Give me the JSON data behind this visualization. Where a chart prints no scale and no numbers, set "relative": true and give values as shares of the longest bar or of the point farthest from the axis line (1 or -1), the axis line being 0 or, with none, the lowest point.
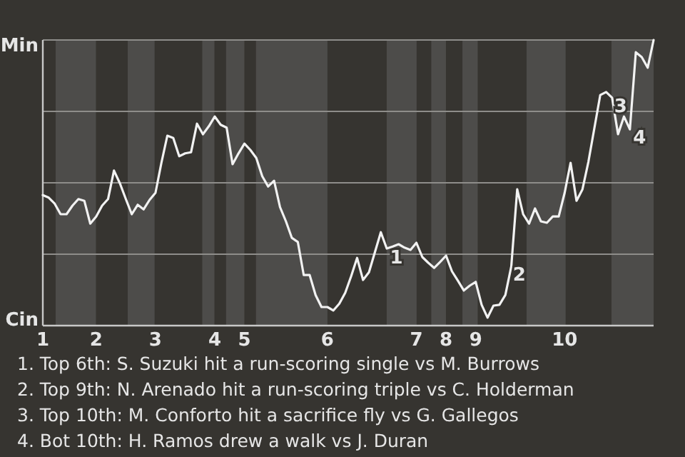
{
  "chart_data": {
    "type": "line",
    "relative": true,
    "categories": [
      "1",
      null,
      null,
      null,
      null,
      null,
      null,
      null,
      null,
      "2",
      null,
      null,
      null,
      null,
      null,
      null,
      null,
      null,
      null,
      "3",
      null,
      null,
      null,
      null,
      null,
      null,
      null,
      null,
      null,
      "4",
      null,
      null,
      null,
      null,
      "5",
      null,
      null,
      null,
      null,
      null,
      null,
      null,
      null,
      null,
      null,
      null,
      null,
      null,
      "6",
      null,
      null,
      null,
      null,
      null,
      null,
      null,
      null,
      null,
      null,
      null,
      null,
      null,
      null,
      "7",
      null,
      null,
      null,
      null,
      "8",
      null,
      null,
      null,
      null,
      "9",
      null,
      null,
      null,
      null,
      null,
      null,
      null,
      null,
      null,
      null,
      null,
      null,
      null,
      null,
      "10",
      null,
      null,
      null,
      null,
      null,
      null,
      null,
      null,
      null,
      null,
      null,
      null,
      null,
      null,
      null
    ],
    "grid": "y",
    "marker": "none",
    "line_style": "solid",
    "series": [
      {
        "color": "#f2f2f2",
        "values": [
          0.457,
          0.448,
          0.427,
          0.39,
          0.39,
          0.42,
          0.443,
          0.437,
          0.357,
          0.382,
          0.42,
          0.443,
          0.543,
          0.498,
          0.443,
          0.39,
          0.423,
          0.407,
          0.44,
          0.465,
          0.57,
          0.665,
          0.657,
          0.593,
          0.603,
          0.607,
          0.707,
          0.67,
          0.698,
          0.732,
          0.703,
          0.693,
          0.565,
          0.603,
          0.637,
          0.615,
          0.587,
          0.523,
          0.487,
          0.507,
          0.415,
          0.365,
          0.307,
          0.293,
          0.177,
          0.177,
          0.107,
          0.065,
          0.065,
          0.053,
          0.077,
          0.115,
          0.173,
          0.237,
          0.16,
          0.187,
          0.257,
          0.327,
          0.27,
          0.277,
          0.285,
          0.273,
          0.265,
          0.29,
          0.24,
          0.22,
          0.202,
          0.223,
          0.245,
          0.19,
          0.157,
          0.123,
          0.14,
          0.153,
          0.073,
          0.028,
          0.07,
          0.073,
          0.107,
          0.207,
          0.477,
          0.39,
          0.357,
          0.41,
          0.365,
          0.36,
          0.382,
          0.382,
          0.465,
          0.57,
          0.437,
          0.477,
          0.573,
          0.69,
          0.807,
          0.818,
          0.798,
          0.67,
          0.732,
          0.687,
          0.957,
          0.94,
          0.903,
          1
        ]
      }
    ],
    "annotations": [
      "Min",
      "Cin",
      "1",
      "2",
      "3",
      "4",
      "1. Top 6th: S. Suzuki hit a run-scoring single vs M. Burrows",
      "2. Top 9th: N. Arenado hit a run-scoring triple vs C. Holderman",
      "3. Top 10th: M. Conforto hit a sacrifice fly vs G. Gallegos",
      "4. Bot 10th: H. Ramos drew a walk vs J. Duran"
    ]
  }
}
